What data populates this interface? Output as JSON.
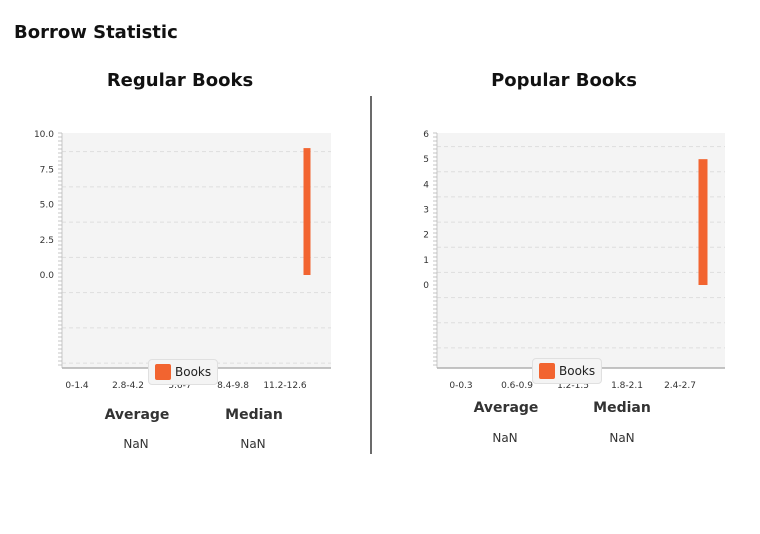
{
  "page_title": "Borrow Statistic",
  "colors": {
    "bar": "#f26430",
    "plot_bg": "#f4f4f4",
    "grid": "#dddddd"
  },
  "panels": [
    {
      "title": "Regular Books",
      "legend": "Books",
      "stats": {
        "average_label": "Average",
        "average_value": "NaN",
        "median_label": "Median",
        "median_value": "NaN"
      }
    },
    {
      "title": "Popular Books",
      "legend": "Books",
      "stats": {
        "average_label": "Average",
        "average_value": "NaN",
        "median_label": "Median",
        "median_value": "NaN"
      }
    }
  ],
  "chart_data": [
    {
      "type": "bar",
      "title": "Regular Books",
      "categories": [
        "0-1.4",
        "2.8-4.2",
        "5.6-7",
        "8.4-9.8",
        "11.2-12.6"
      ],
      "series": [
        {
          "name": "Books",
          "values": [
            0,
            0,
            0,
            0,
            9
          ]
        }
      ],
      "yticks": [
        0.0,
        2.5,
        5.0,
        7.5,
        10.0
      ],
      "ytick_labels": [
        "0.0",
        "2.5",
        "5.0",
        "7.5",
        "10.0"
      ],
      "ylim": [
        0,
        10
      ],
      "xlabel": "",
      "ylabel": "",
      "grid": true,
      "legend_position": "bottom"
    },
    {
      "type": "bar",
      "title": "Popular Books",
      "categories": [
        "0-0.3",
        "0.6-0.9",
        "1.2-1.5",
        "1.8-2.1",
        "2.4-2.7"
      ],
      "series": [
        {
          "name": "Books",
          "values": [
            0,
            0,
            0,
            0,
            5
          ]
        }
      ],
      "yticks": [
        0,
        1,
        2,
        3,
        4,
        5,
        6
      ],
      "ytick_labels": [
        "0",
        "1",
        "2",
        "3",
        "4",
        "5",
        "6"
      ],
      "ylim": [
        0,
        6
      ],
      "xlabel": "",
      "ylabel": "",
      "grid": true,
      "legend_position": "bottom"
    }
  ]
}
